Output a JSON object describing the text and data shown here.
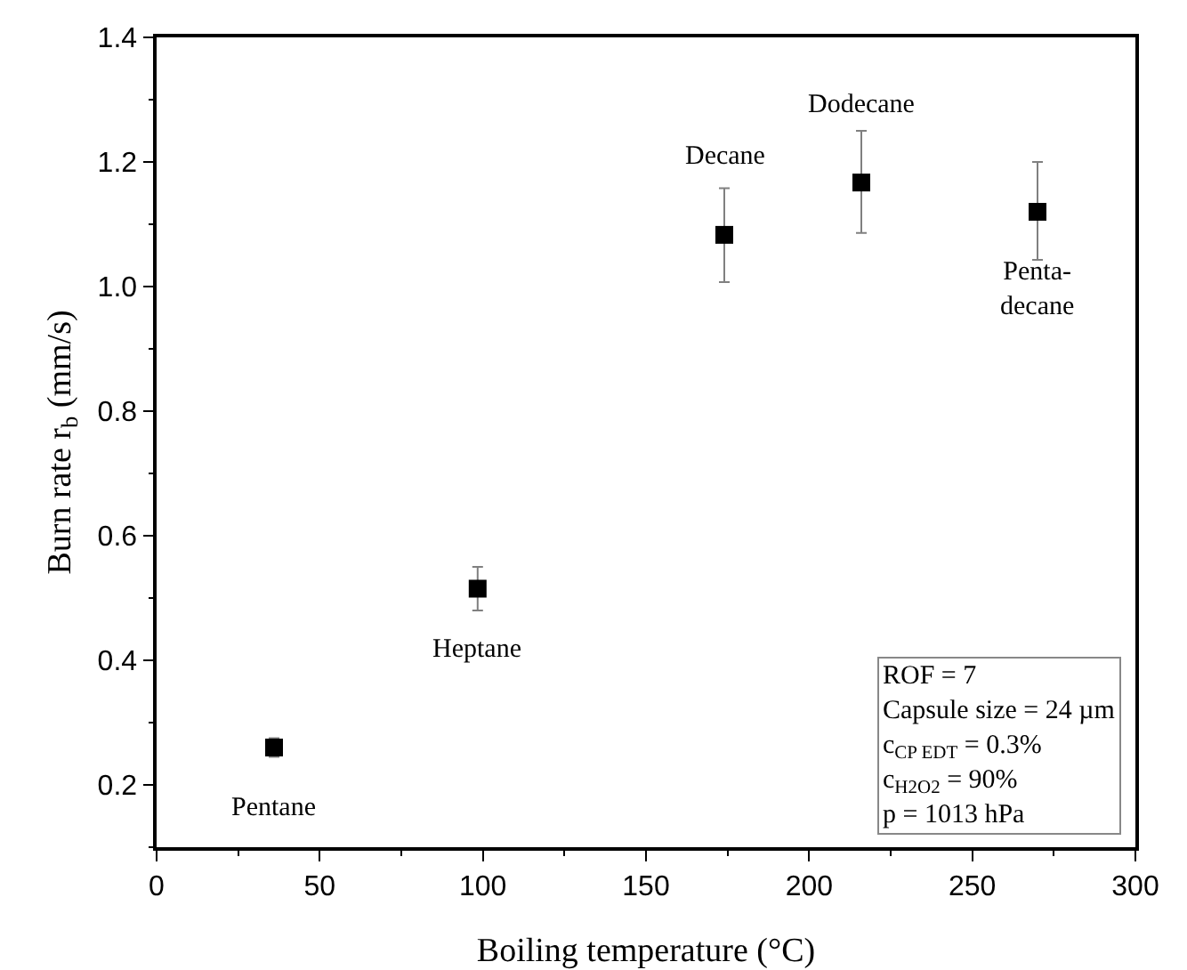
{
  "chart_data": {
    "type": "scatter",
    "xlabel": "Boiling temperature (°C)",
    "ylabel": "Burn rate r$_{b}$ (mm/s)",
    "x": [
      36,
      98.4,
      174,
      216,
      270
    ],
    "series": [
      {
        "color": "#000000",
        "values": [
          0.26,
          0.515,
          1.083,
          1.167,
          1.12
        ],
        "errors": [
          0.015,
          [
            0.48,
            0.55
          ],
          [
            1.007,
            1.158
          ],
          [
            1.086,
            1.25
          ],
          [
            1.043,
            1.2
          ]
        ]
      }
    ],
    "xlim": [
      0,
      300
    ],
    "xticks": [
      0,
      50,
      100,
      150,
      200,
      250,
      300
    ],
    "ylim": [
      0.1,
      1.4
    ],
    "yticks": [
      0.2,
      0.4,
      0.6,
      0.8,
      {
        "value": 1,
        "label": "1.0"
      },
      1.2,
      1.4
    ],
    "marker": "square",
    "annotations": [
      {
        "text": "Pentane",
        "x": 36,
        "y": 0.26
      },
      {
        "text": "Heptane",
        "x": 98.4,
        "y": 0.515
      },
      {
        "text": "Decane",
        "x": 174,
        "y": 1.083
      },
      {
        "text": "Dodecane",
        "x": 216,
        "y": 1.167
      },
      {
        "text": "Penta-\ndecane",
        "x": 270,
        "y": 1.12
      },
      "ROF = 7\nCapsule size = 24 µm\nc$_{CP EDT}$ = 0.3%\nc$_{H2O2}$ = 90%\np = 1013 hPa"
    ]
  }
}
